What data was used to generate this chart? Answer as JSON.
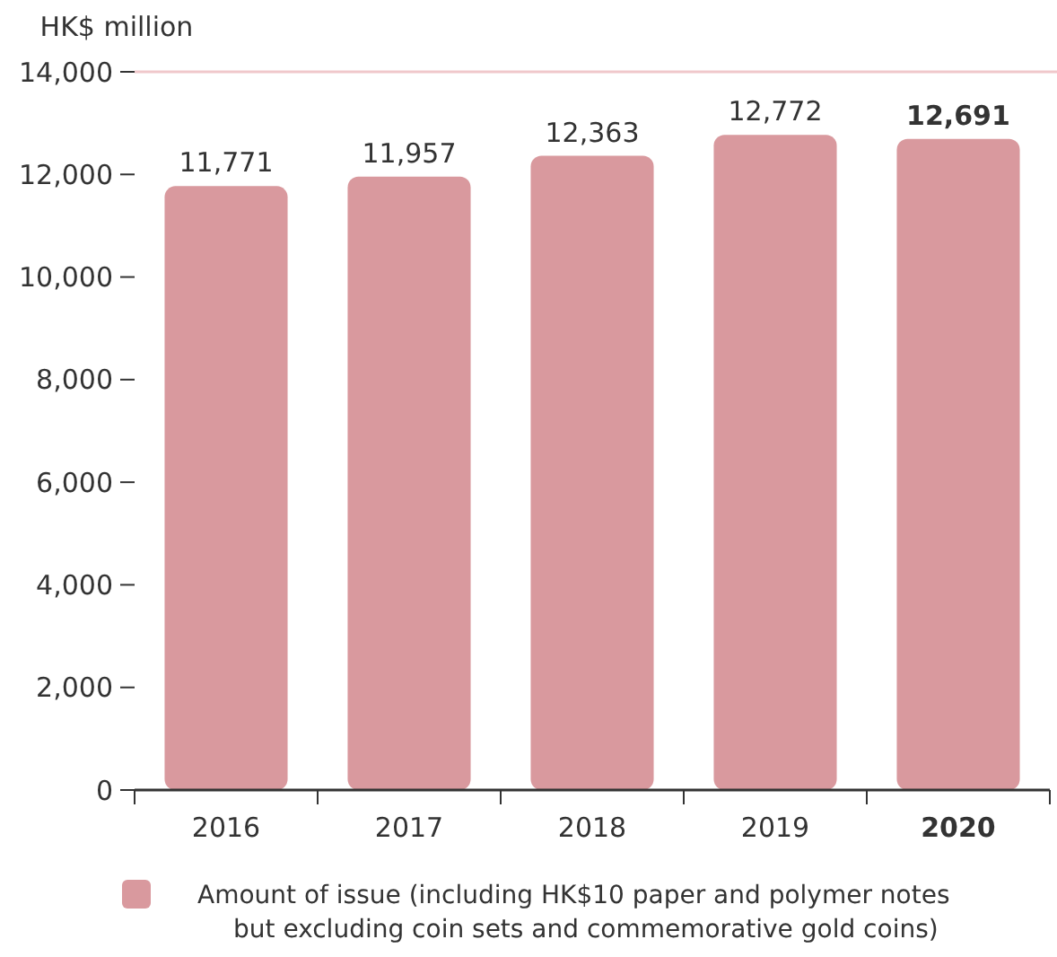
{
  "chart_data": {
    "type": "bar",
    "ylabel": "HK$ million",
    "categories": [
      "2016",
      "2017",
      "2018",
      "2019",
      "2020"
    ],
    "series": [
      {
        "name": "Amount of issue (including HK$10 paper and polymer notes but excluding coin sets and commemorative gold coins)",
        "color": "#d9999e",
        "values": [
          11771,
          11957,
          12363,
          12772,
          12691
        ]
      }
    ],
    "ylim": [
      0,
      14000
    ],
    "yticks": [
      {
        "value": 0,
        "label": "0"
      },
      {
        "value": 2000,
        "label": "2,000"
      },
      {
        "value": 4000,
        "label": "4,000"
      },
      {
        "value": 6000,
        "label": "6,000"
      },
      {
        "value": 8000,
        "label": "8,000"
      },
      {
        "value": 10000,
        "label": "10,000"
      },
      {
        "value": 12000,
        "label": "12,000"
      },
      {
        "value": 14000,
        "label": "14,000"
      }
    ],
    "value_labels": [
      "11,771",
      "11,957",
      "12,363",
      "12,772",
      "12,691"
    ],
    "grid": false,
    "legend": "bottom"
  }
}
